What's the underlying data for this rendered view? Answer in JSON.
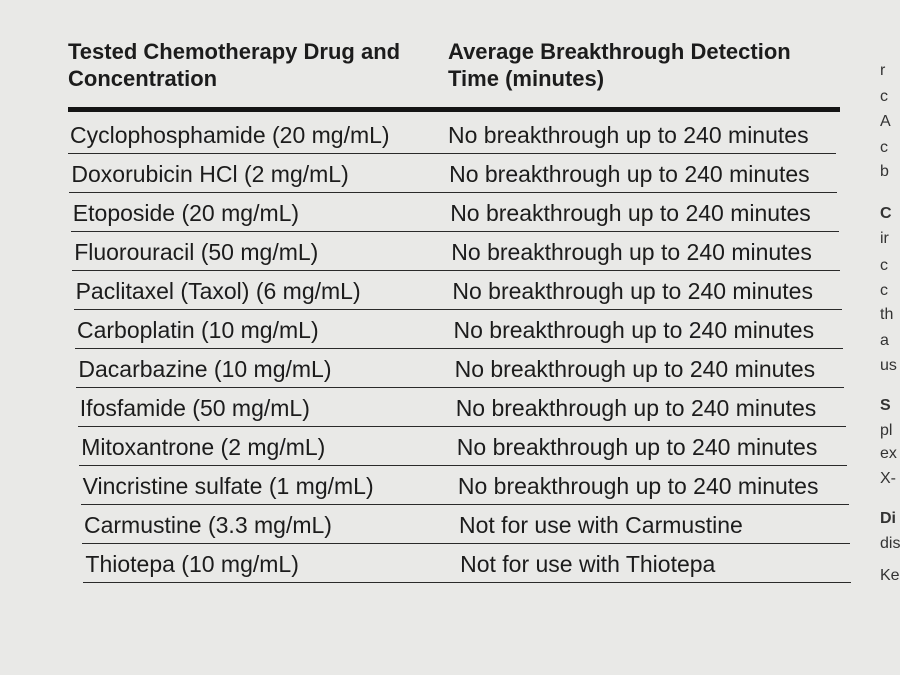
{
  "table": {
    "headers": [
      "Tested Chemotherapy Drug and Concentration",
      "Average Breakthrough Detection Time (minutes)"
    ],
    "rows": [
      [
        "Cyclophosphamide (20 mg/mL)",
        "No breakthrough up to 240 minutes"
      ],
      [
        "Doxorubicin HCl (2 mg/mL)",
        "No breakthrough up to 240 minutes"
      ],
      [
        "Etoposide  (20 mg/mL)",
        "No breakthrough up to 240 minutes"
      ],
      [
        "Fluorouracil (50 mg/mL)",
        "No breakthrough up to 240 minutes"
      ],
      [
        "Paclitaxel (Taxol) (6 mg/mL)",
        "No breakthrough up to 240 minutes"
      ],
      [
        "Carboplatin (10 mg/mL)",
        "No breakthrough up to 240 minutes"
      ],
      [
        "Dacarbazine (10 mg/mL)",
        "No breakthrough up to 240 minutes"
      ],
      [
        "Ifosfamide (50 mg/mL)",
        "No breakthrough up to 240 minutes"
      ],
      [
        "Mitoxantrone (2 mg/mL)",
        "No breakthrough up to 240 minutes"
      ],
      [
        "Vincristine sulfate (1 mg/mL)",
        "No breakthrough up to 240 minutes"
      ],
      [
        "Carmustine (3.3 mg/mL)",
        "Not for use with Carmustine"
      ],
      [
        "Thiotepa (10 mg/mL)",
        "Not for use with Thiotepa"
      ]
    ]
  },
  "side_text": [
    "r",
    "c",
    "A",
    "c",
    "b",
    "C",
    "ir",
    "c",
    "c",
    "th",
    "a",
    "us",
    "S",
    "pl",
    "ex",
    "X-",
    "Di",
    "dis",
    "Ke"
  ]
}
